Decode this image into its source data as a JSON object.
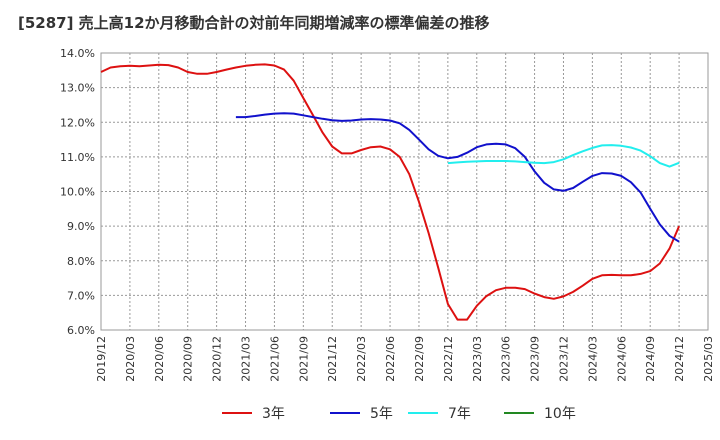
{
  "chart_data": {
    "type": "line",
    "title": "[5287]  売上高12か月移動合計の対前年同期増減率の標準偏差の推移",
    "xlabel": "",
    "ylabel": "",
    "ylim": [
      6.0,
      14.0
    ],
    "y_ticks": [
      "6.0%",
      "7.0%",
      "8.0%",
      "9.0%",
      "10.0%",
      "11.0%",
      "12.0%",
      "13.0%",
      "14.0%"
    ],
    "x_ticks": [
      "2019/12",
      "2020/03",
      "2020/06",
      "2020/09",
      "2020/12",
      "2021/03",
      "2021/06",
      "2021/09",
      "2021/12",
      "2022/03",
      "2022/06",
      "2022/09",
      "2022/12",
      "2023/03",
      "2023/06",
      "2023/09",
      "2023/12",
      "2024/03",
      "2024/06",
      "2024/09",
      "2024/12",
      "2025/03"
    ],
    "grid": true,
    "legend_position": "bottom",
    "series": [
      {
        "name": "3年",
        "color": "#dd1111",
        "points": [
          [
            "2019/12",
            13.45
          ],
          [
            "2020/01",
            13.58
          ],
          [
            "2020/02",
            13.62
          ],
          [
            "2020/03",
            13.63
          ],
          [
            "2020/04",
            13.62
          ],
          [
            "2020/05",
            13.64
          ],
          [
            "2020/06",
            13.66
          ],
          [
            "2020/07",
            13.65
          ],
          [
            "2020/08",
            13.58
          ],
          [
            "2020/09",
            13.45
          ],
          [
            "2020/10",
            13.4
          ],
          [
            "2020/11",
            13.4
          ],
          [
            "2020/12",
            13.45
          ],
          [
            "2021/01",
            13.52
          ],
          [
            "2021/02",
            13.58
          ],
          [
            "2021/03",
            13.63
          ],
          [
            "2021/04",
            13.66
          ],
          [
            "2021/05",
            13.67
          ],
          [
            "2021/06",
            13.64
          ],
          [
            "2021/07",
            13.52
          ],
          [
            "2021/08",
            13.2
          ],
          [
            "2021/09",
            12.7
          ],
          [
            "2021/10",
            12.2
          ],
          [
            "2021/11",
            11.7
          ],
          [
            "2021/12",
            11.3
          ],
          [
            "2022/01",
            11.1
          ],
          [
            "2022/02",
            11.1
          ],
          [
            "2022/03",
            11.2
          ],
          [
            "2022/04",
            11.28
          ],
          [
            "2022/05",
            11.3
          ],
          [
            "2022/06",
            11.22
          ],
          [
            "2022/07",
            11.0
          ],
          [
            "2022/08",
            10.5
          ],
          [
            "2022/09",
            9.7
          ],
          [
            "2022/10",
            8.8
          ],
          [
            "2022/11",
            7.8
          ],
          [
            "2022/12",
            6.75
          ],
          [
            "2023/01",
            6.3
          ],
          [
            "2023/02",
            6.3
          ],
          [
            "2023/03",
            6.7
          ],
          [
            "2023/04",
            6.98
          ],
          [
            "2023/05",
            7.15
          ],
          [
            "2023/06",
            7.22
          ],
          [
            "2023/07",
            7.22
          ],
          [
            "2023/08",
            7.18
          ],
          [
            "2023/09",
            7.05
          ],
          [
            "2023/10",
            6.95
          ],
          [
            "2023/11",
            6.9
          ],
          [
            "2023/12",
            6.97
          ],
          [
            "2024/01",
            7.1
          ],
          [
            "2024/02",
            7.28
          ],
          [
            "2024/03",
            7.48
          ],
          [
            "2024/04",
            7.58
          ],
          [
            "2024/05",
            7.59
          ],
          [
            "2024/06",
            7.58
          ],
          [
            "2024/07",
            7.58
          ],
          [
            "2024/08",
            7.62
          ],
          [
            "2024/09",
            7.7
          ],
          [
            "2024/10",
            7.92
          ],
          [
            "2024/11",
            8.35
          ],
          [
            "2024/12",
            9.0
          ]
        ]
      },
      {
        "name": "5年",
        "color": "#1111cc",
        "points": [
          [
            "2021/02",
            12.15
          ],
          [
            "2021/03",
            12.15
          ],
          [
            "2021/04",
            12.18
          ],
          [
            "2021/05",
            12.22
          ],
          [
            "2021/06",
            12.25
          ],
          [
            "2021/07",
            12.26
          ],
          [
            "2021/08",
            12.25
          ],
          [
            "2021/09",
            12.2
          ],
          [
            "2021/10",
            12.15
          ],
          [
            "2021/11",
            12.1
          ],
          [
            "2021/12",
            12.06
          ],
          [
            "2022/01",
            12.04
          ],
          [
            "2022/02",
            12.05
          ],
          [
            "2022/03",
            12.08
          ],
          [
            "2022/04",
            12.09
          ],
          [
            "2022/05",
            12.08
          ],
          [
            "2022/06",
            12.05
          ],
          [
            "2022/07",
            11.97
          ],
          [
            "2022/08",
            11.78
          ],
          [
            "2022/09",
            11.5
          ],
          [
            "2022/10",
            11.22
          ],
          [
            "2022/11",
            11.03
          ],
          [
            "2022/12",
            10.96
          ],
          [
            "2023/01",
            11.0
          ],
          [
            "2023/02",
            11.12
          ],
          [
            "2023/03",
            11.28
          ],
          [
            "2023/04",
            11.36
          ],
          [
            "2023/05",
            11.38
          ],
          [
            "2023/06",
            11.36
          ],
          [
            "2023/07",
            11.25
          ],
          [
            "2023/08",
            11.0
          ],
          [
            "2023/09",
            10.58
          ],
          [
            "2023/10",
            10.25
          ],
          [
            "2023/11",
            10.06
          ],
          [
            "2023/12",
            10.02
          ],
          [
            "2024/01",
            10.1
          ],
          [
            "2024/02",
            10.28
          ],
          [
            "2024/03",
            10.45
          ],
          [
            "2024/04",
            10.53
          ],
          [
            "2024/05",
            10.52
          ],
          [
            "2024/06",
            10.45
          ],
          [
            "2024/07",
            10.27
          ],
          [
            "2024/08",
            9.97
          ],
          [
            "2024/09",
            9.5
          ],
          [
            "2024/10",
            9.05
          ],
          [
            "2024/11",
            8.72
          ],
          [
            "2024/12",
            8.55
          ]
        ]
      },
      {
        "name": "7年",
        "color": "#22eeee",
        "points": [
          [
            "2022/12",
            10.82
          ],
          [
            "2023/01",
            10.84
          ],
          [
            "2023/02",
            10.86
          ],
          [
            "2023/03",
            10.87
          ],
          [
            "2023/04",
            10.88
          ],
          [
            "2023/05",
            10.88
          ],
          [
            "2023/06",
            10.88
          ],
          [
            "2023/07",
            10.87
          ],
          [
            "2023/08",
            10.85
          ],
          [
            "2023/09",
            10.83
          ],
          [
            "2023/10",
            10.82
          ],
          [
            "2023/11",
            10.85
          ],
          [
            "2023/12",
            10.93
          ],
          [
            "2024/01",
            11.05
          ],
          [
            "2024/02",
            11.16
          ],
          [
            "2024/03",
            11.26
          ],
          [
            "2024/04",
            11.33
          ],
          [
            "2024/05",
            11.34
          ],
          [
            "2024/06",
            11.32
          ],
          [
            "2024/07",
            11.27
          ],
          [
            "2024/08",
            11.18
          ],
          [
            "2024/09",
            11.02
          ],
          [
            "2024/10",
            10.82
          ],
          [
            "2024/11",
            10.72
          ],
          [
            "2024/12",
            10.83
          ]
        ]
      },
      {
        "name": "10年",
        "color": "#228822",
        "points": []
      }
    ]
  }
}
